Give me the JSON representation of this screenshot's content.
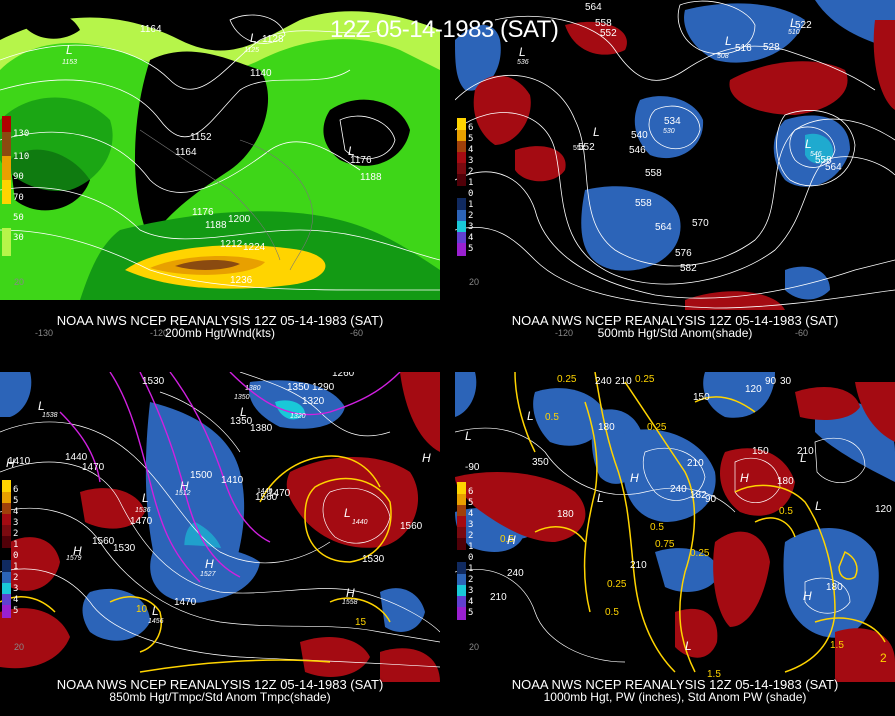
{
  "header": {
    "title": "12Z 05-14-1983 (SAT)"
  },
  "panels": [
    {
      "id": "200mb",
      "caption1": "NOAA NWS NCEP REANALYSIS 12Z 05-14-1983 (SAT)",
      "caption2": "200mb Hgt/Wnd(kts)",
      "colorbar": [
        "130",
        "110",
        "90",
        "70",
        "50",
        "30"
      ],
      "contour_labels": [
        "1164",
        "1128",
        "1140",
        "1152",
        "1164",
        "1176",
        "1188",
        "1176",
        "1188",
        "1200",
        "1212",
        "1224",
        "1236",
        "1125",
        "1153"
      ],
      "axis_labels": [
        "-130",
        "-120",
        "-60",
        "20"
      ],
      "pressure_letters": [
        "L",
        "L",
        "L"
      ]
    },
    {
      "id": "500mb",
      "caption1": "NOAA NWS NCEP REANALYSIS 12Z 05-14-1983 (SAT)",
      "caption2": "500mb Hgt/Std Anom(shade)",
      "colorbar": [
        "6",
        "5",
        "4",
        "3",
        "2",
        "1",
        "0",
        "1",
        "2",
        "3",
        "4",
        "5"
      ],
      "contour_labels": [
        "564",
        "558",
        "552",
        "516",
        "528",
        "522",
        "536",
        "552",
        "540",
        "534",
        "546",
        "530",
        "552",
        "558",
        "564",
        "546",
        "558",
        "564",
        "570",
        "576",
        "582",
        "558",
        "508",
        "510"
      ],
      "axis_labels": [
        "-120",
        "-60",
        "20"
      ],
      "pressure_letters": [
        "L",
        "L",
        "L",
        "L",
        "L"
      ]
    },
    {
      "id": "850mb",
      "caption1": "NOAA NWS NCEP REANALYSIS 12Z 05-14-1983 (SAT)",
      "caption2": "850mb Hgt/Tmpc/Std Anom Tmpc(shade)",
      "colorbar": [
        "6",
        "5",
        "4",
        "3",
        "2",
        "1",
        "0",
        "1",
        "2",
        "3",
        "4",
        "5"
      ],
      "contour_labels": [
        "1530",
        "1260",
        "1350",
        "1290",
        "1320",
        "1350",
        "1380",
        "1320",
        "1380",
        "1410",
        "1440",
        "1470",
        "1500",
        "1410",
        "1440",
        "1470",
        "1560",
        "1530",
        "1560",
        "1530",
        "1470",
        "1470",
        "1560",
        "10",
        "15",
        "1512",
        "1527",
        "1456",
        "1558",
        "1579",
        "1536",
        "1538",
        "1440",
        "1350"
      ],
      "axis_labels": [
        "20"
      ],
      "pressure_letters": [
        "L",
        "H",
        "L",
        "H",
        "L",
        "H",
        "H",
        "L",
        "H",
        "H",
        "L"
      ]
    },
    {
      "id": "1000mb",
      "caption1": "NOAA NWS NCEP REANALYSIS 12Z 05-14-1983 (SAT)",
      "caption2": "1000mb Hgt, PW (inches), Std Anom PW (shade)",
      "colorbar": [
        "6",
        "5",
        "4",
        "3",
        "2",
        "1",
        "0",
        "1",
        "2",
        "3",
        "4",
        "5"
      ],
      "contour_labels": [
        "0.25",
        "240",
        "210",
        "0.25",
        "120",
        "90",
        "30",
        "0.5",
        "150",
        "180",
        "0.25",
        "210",
        "-90",
        "350",
        "240",
        "150",
        "210",
        "182",
        "90",
        "180",
        "180",
        "0.5",
        "120",
        "0.5",
        "0.5",
        "0.25",
        "0.75",
        "210",
        "240",
        "210",
        "0.25",
        "0.5",
        "180",
        "1.5",
        "2",
        "1.5"
      ],
      "axis_labels": [
        "20"
      ],
      "pressure_letters": [
        "L",
        "H",
        "L",
        "H",
        "H",
        "L",
        "L",
        "L",
        "H",
        "L"
      ]
    }
  ],
  "colors": {
    "wind_light": "#b6f54a",
    "wind_green": "#3ed618",
    "wind_dark": "#139a14",
    "wind_yellow": "#ffd400",
    "wind_orange": "#e8a000",
    "wind_brown": "#8a4a10",
    "anom_pos": "#a40b12",
    "anom_neg": "#2c64b8",
    "anom_cyan": "#19c8d8",
    "pw_contour": "#ffd400",
    "temp_contour": "#d020e0"
  }
}
